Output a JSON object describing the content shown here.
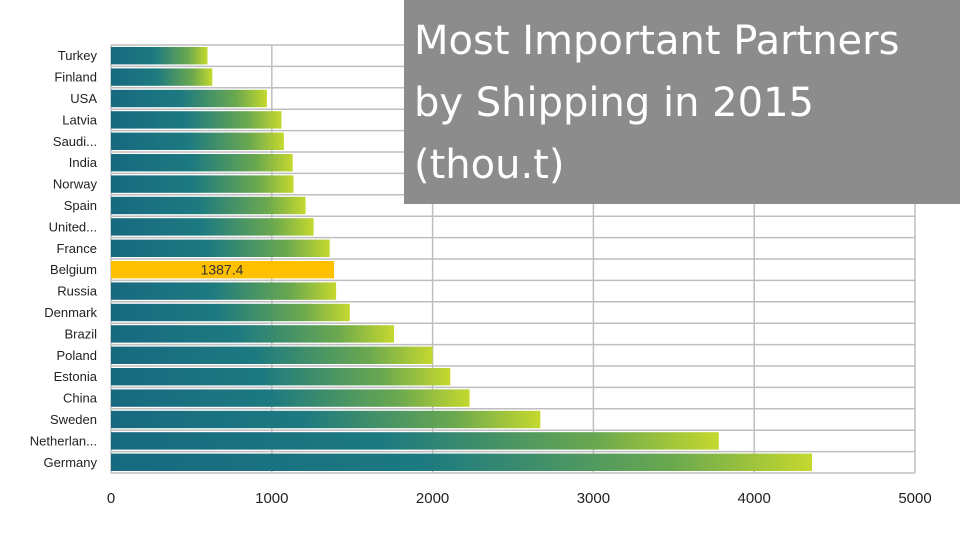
{
  "chart_data": {
    "type": "bar",
    "orientation": "horizontal",
    "title": "Most Important Partners by Shipping in 2015 (thou.t)",
    "categories": [
      "Turkey",
      "Finland",
      "USA",
      "Latvia",
      "Saudi...",
      "India",
      "Norway",
      "Spain",
      "United...",
      "France",
      "Belgium",
      "Russia",
      "Denmark",
      "Brazil",
      "Poland",
      "Estonia",
      "China",
      "Sweden",
      "Netherlan...",
      "Germany"
    ],
    "values": [
      600,
      630,
      970,
      1060,
      1075,
      1130,
      1135,
      1210,
      1260,
      1360,
      1387.4,
      1400,
      1485,
      1760,
      2000,
      2110,
      2230,
      2670,
      3780,
      4360
    ],
    "highlight": {
      "category": "Belgium",
      "label": "1387.4",
      "color": "#ffc000"
    },
    "xlim": [
      0,
      5000
    ],
    "xticks": [
      0,
      1000,
      2000,
      3000,
      4000,
      5000
    ],
    "grid": true,
    "bar_gradient": [
      "#17697f",
      "#1d7a80",
      "#6aa84f",
      "#c5d82e"
    ],
    "xlabel": "",
    "ylabel": ""
  }
}
